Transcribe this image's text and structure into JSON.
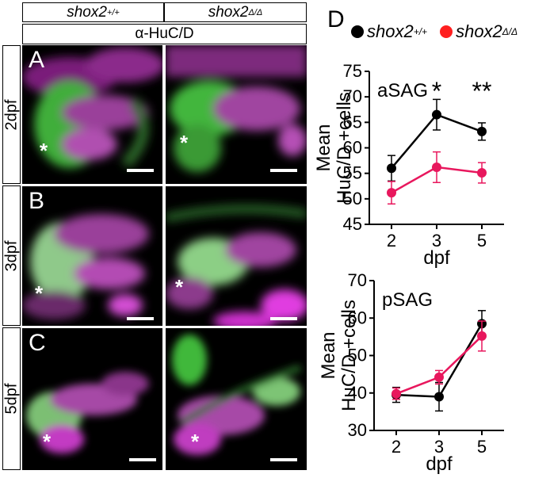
{
  "figure": {
    "col_headers": [
      {
        "gene": "shox2",
        "sup": "+/+"
      },
      {
        "gene": "shox2",
        "sup": "Δ/Δ"
      }
    ],
    "stain_label": "α-HuC/D",
    "rows": [
      {
        "letter": "A",
        "label": "2dpf"
      },
      {
        "letter": "B",
        "label": "3dpf"
      },
      {
        "letter": "C",
        "label": "5dpf"
      }
    ],
    "asterisk": "*",
    "panel_d_letter": "D",
    "legend": [
      {
        "gene": "shox2",
        "sup": "+/+",
        "color": "#000000"
      },
      {
        "gene": "shox2",
        "sup": "Δ/Δ",
        "color": "#ff1f1f"
      }
    ]
  },
  "chart_data": [
    {
      "type": "line",
      "title": "aSAG",
      "xlabel": "dpf",
      "ylabel": "Mean HuC/D +cells",
      "ylabel_lines": [
        "Mean",
        "HuC/D +cells"
      ],
      "categories": [
        "2",
        "3",
        "5"
      ],
      "ylim": [
        45,
        75
      ],
      "yticks": [
        45,
        50,
        55,
        60,
        65,
        70,
        75
      ],
      "significance": [
        "",
        "*",
        "**"
      ],
      "series": [
        {
          "name": "shox2+/+",
          "color": "#000000",
          "values": [
            56,
            66.5,
            63.2
          ],
          "errors": [
            2.5,
            3,
            1.7
          ]
        },
        {
          "name": "shox2Δ/Δ",
          "color": "#e8175d",
          "values": [
            51.2,
            56.2,
            55.1
          ],
          "errors": [
            2.2,
            3,
            2
          ]
        }
      ]
    },
    {
      "type": "line",
      "title": "pSAG",
      "xlabel": "dpf",
      "ylabel": "Mean HuC/D +cells",
      "ylabel_lines": [
        "Mean",
        "HuC/D +cells"
      ],
      "categories": [
        "2",
        "3",
        "5"
      ],
      "ylim": [
        30,
        70
      ],
      "yticks": [
        30,
        40,
        50,
        60,
        70
      ],
      "series": [
        {
          "name": "shox2+/+",
          "color": "#000000",
          "values": [
            39.5,
            39,
            58.5
          ],
          "errors": [
            2,
            3.8,
            3.5
          ]
        },
        {
          "name": "shox2Δ/Δ",
          "color": "#e8175d",
          "values": [
            39.8,
            44.2,
            55.2
          ],
          "errors": [
            1.5,
            1.8,
            4
          ]
        }
      ]
    }
  ]
}
